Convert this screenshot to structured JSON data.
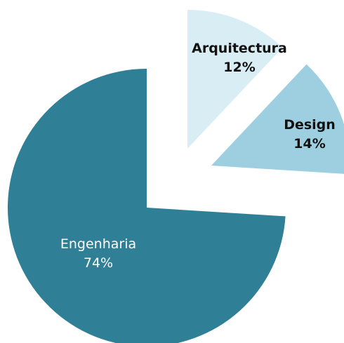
{
  "chart_data": {
    "type": "pie",
    "title": "",
    "exploded": true,
    "start_angle_deg": 0,
    "direction": "clockwise",
    "slices": [
      {
        "label": "Arquitectura",
        "value": 12,
        "value_label": "12%",
        "color": "#d9edf5",
        "text_color": "#111111"
      },
      {
        "label": "Design",
        "value": 14,
        "value_label": "14%",
        "color": "#9ecfe0",
        "text_color": "#111111"
      },
      {
        "label": "Engenharia",
        "value": 74,
        "value_label": "74%",
        "color": "#2f7f96",
        "text_color": "#ffffff"
      }
    ]
  }
}
